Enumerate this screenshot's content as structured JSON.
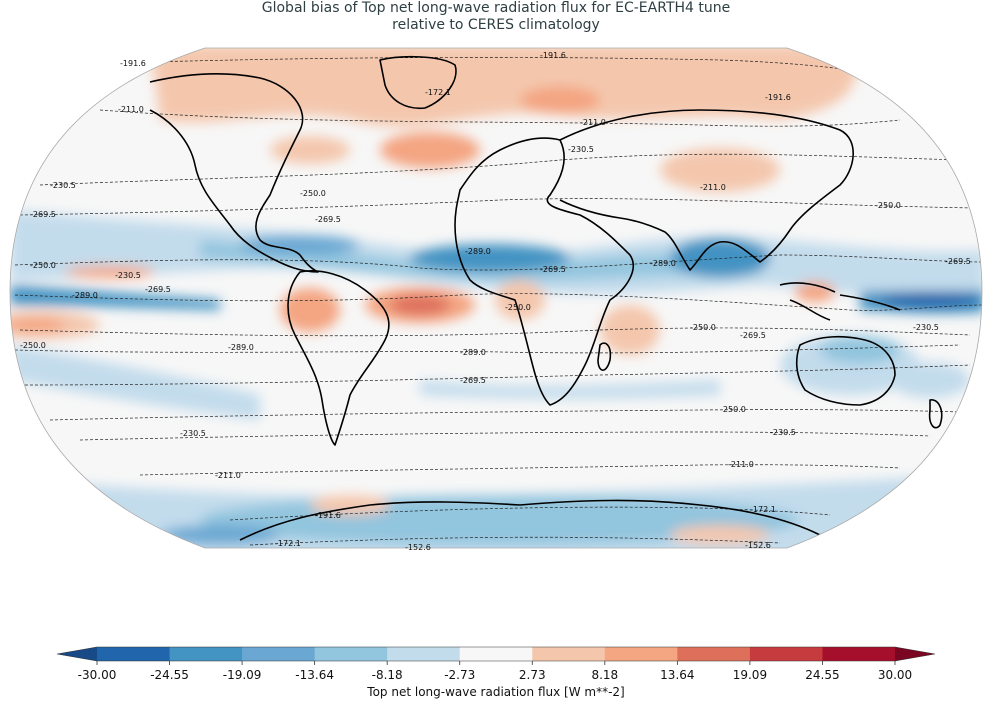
{
  "title": {
    "line1": "Global bias of Top net long-wave radiation flux for EC-EARTH4 tune",
    "line2": "relative to CERES climatology"
  },
  "contour_labels": [
    "-191.6",
    "-172.1",
    "-211.0",
    "-230.5",
    "-250.0",
    "-269.5",
    "-289.0",
    "-152.6"
  ],
  "colorbar": {
    "label": "Top net long-wave radiation flux [W m**-2]",
    "ticks": [
      "-30.00",
      "-24.55",
      "-19.09",
      "-13.64",
      "-8.18",
      "-2.73",
      "2.73",
      "8.18",
      "13.64",
      "19.09",
      "24.55",
      "30.00"
    ],
    "colors": [
      "#2166ac",
      "#4393c3",
      "#6aa8d3",
      "#92c5de",
      "#c3dcec",
      "#f7f7f7",
      "#f4c7ad",
      "#f4a582",
      "#de6f5b",
      "#c63b3e",
      "#a50f2b"
    ],
    "under_color": "#174a86",
    "over_color": "#7a0621"
  },
  "chart_data": {
    "type": "heatmap",
    "title": "Global bias of Top net long-wave radiation flux for EC-EARTH4 tune relative to CERES climatology",
    "colorbar_label": "Top net long-wave radiation flux [W m**-2]",
    "levels": [
      -30.0,
      -24.55,
      -19.09,
      -13.64,
      -8.18,
      -2.73,
      2.73,
      8.18,
      13.64,
      19.09,
      24.55,
      30.0
    ],
    "vmin": -30.0,
    "vmax": 30.0,
    "contour_levels": [
      -289.0,
      -269.5,
      -250.0,
      -230.5,
      -211.0,
      -191.6,
      -172.1,
      -152.6
    ],
    "projection": "Robinson",
    "colormap": "RdBu_r"
  }
}
